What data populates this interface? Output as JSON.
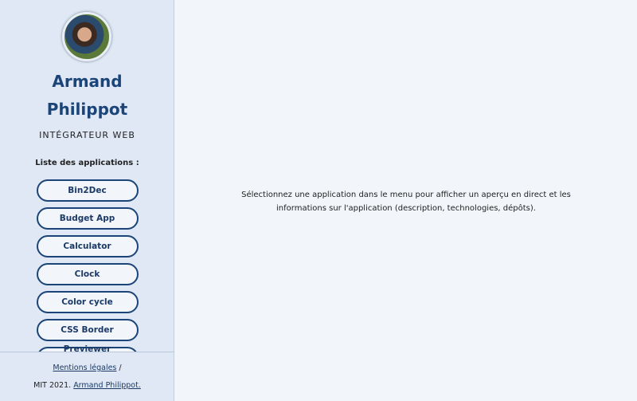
{
  "profile": {
    "name_first": "Armand",
    "name_last": "Philippot",
    "role": "INTÉGRATEUR WEB"
  },
  "apps_title": "Liste des applications :",
  "apps": [
    "Bin2Dec",
    "Budget App",
    "Calculator",
    "Clock",
    "Color cycle",
    "CSS Border Previewer",
    ""
  ],
  "footer": {
    "legal": "Mentions légales",
    "sep": "/",
    "license": "MIT 2021.",
    "author": "Armand Philippot."
  },
  "main": {
    "message": "Sélectionnez une application dans le menu pour afficher un aperçu en direct et les informations sur l'application (description, technologies, dépôts)."
  }
}
